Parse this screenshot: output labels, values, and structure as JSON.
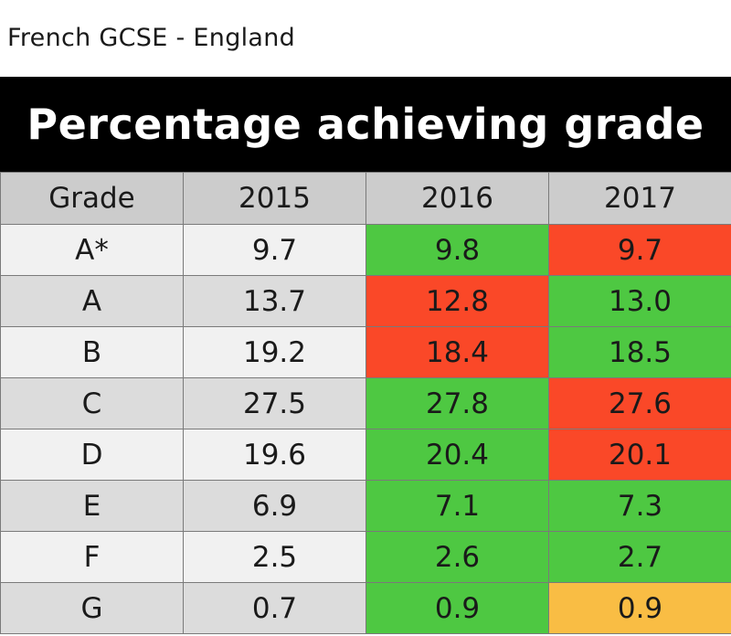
{
  "header": {
    "subtitle": "French GCSE - England",
    "title": "Percentage achieving grade"
  },
  "colors": {
    "up": "#4ec842",
    "down": "#fa4828",
    "same": "#f9bd44"
  },
  "chart_data": {
    "type": "table",
    "columns": [
      "Grade",
      "2015",
      "2016",
      "2017"
    ],
    "rows": [
      {
        "grade": "A*",
        "values": [
          "9.7",
          "9.8",
          "9.7"
        ],
        "status": [
          "base",
          "up",
          "down"
        ]
      },
      {
        "grade": "A",
        "values": [
          "13.7",
          "12.8",
          "13.0"
        ],
        "status": [
          "base",
          "down",
          "up"
        ]
      },
      {
        "grade": "B",
        "values": [
          "19.2",
          "18.4",
          "18.5"
        ],
        "status": [
          "base",
          "down",
          "up"
        ]
      },
      {
        "grade": "C",
        "values": [
          "27.5",
          "27.8",
          "27.6"
        ],
        "status": [
          "base",
          "up",
          "down"
        ]
      },
      {
        "grade": "D",
        "values": [
          "19.6",
          "20.4",
          "20.1"
        ],
        "status": [
          "base",
          "up",
          "down"
        ]
      },
      {
        "grade": "E",
        "values": [
          "6.9",
          "7.1",
          "7.3"
        ],
        "status": [
          "base",
          "up",
          "up"
        ]
      },
      {
        "grade": "F",
        "values": [
          "2.5",
          "2.6",
          "2.7"
        ],
        "status": [
          "base",
          "up",
          "up"
        ]
      },
      {
        "grade": "G",
        "values": [
          "0.7",
          "0.9",
          "0.9"
        ],
        "status": [
          "base",
          "up",
          "same"
        ]
      }
    ]
  }
}
